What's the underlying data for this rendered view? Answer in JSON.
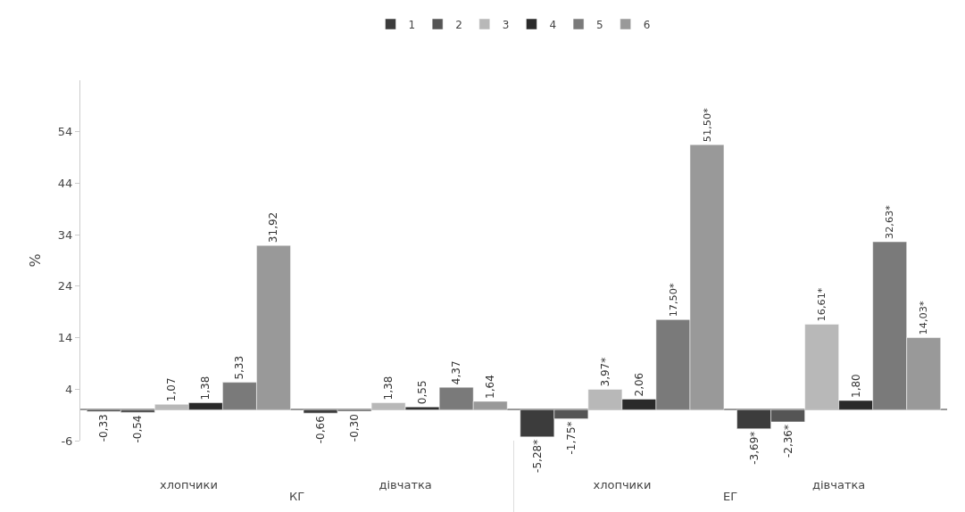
{
  "chart_data": {
    "type": "bar",
    "ylabel": "%",
    "categories": [
      "хлопчики",
      "дівчатка",
      "хлопчики",
      "дівчатка"
    ],
    "annotations": [
      "КГ",
      "ЕГ"
    ],
    "series": [
      {
        "name": "1",
        "color": "#3c3c3c",
        "values": [
          -0.33,
          -0.66,
          -5.28,
          -3.69
        ],
        "value_labels": [
          "-0,33",
          "-0,66",
          "-5,28*",
          "-3,69*"
        ]
      },
      {
        "name": "2",
        "color": "#555555",
        "values": [
          -0.54,
          -0.3,
          -1.75,
          -2.36
        ],
        "value_labels": [
          "-0,54",
          "-0,30",
          "-1,75*",
          "-2,36*"
        ]
      },
      {
        "name": "3",
        "color": "#b8b8b8",
        "values": [
          1.07,
          1.38,
          3.97,
          16.61
        ],
        "value_labels": [
          "1,07",
          "1,38",
          "3,97*",
          "16,61*"
        ]
      },
      {
        "name": "4",
        "color": "#2a2a2a",
        "values": [
          1.38,
          0.55,
          2.06,
          1.8
        ],
        "value_labels": [
          "1,38",
          "0,55",
          "2,06",
          "1,80"
        ]
      },
      {
        "name": "5",
        "color": "#7a7a7a",
        "values": [
          5.33,
          4.37,
          17.5,
          32.63
        ],
        "value_labels": [
          "5,33",
          "4,37",
          "17,50*",
          "32,63*"
        ]
      },
      {
        "name": "6",
        "color": "#999999",
        "values": [
          31.92,
          1.64,
          51.5,
          14.03
        ],
        "value_labels": [
          "31,92",
          "1,64",
          "51,50*",
          "14,03*"
        ]
      }
    ],
    "ylim": [
      -6,
      64
    ],
    "yticks": [
      -6,
      4,
      14,
      24,
      34,
      44,
      54
    ],
    "legend": "top"
  }
}
